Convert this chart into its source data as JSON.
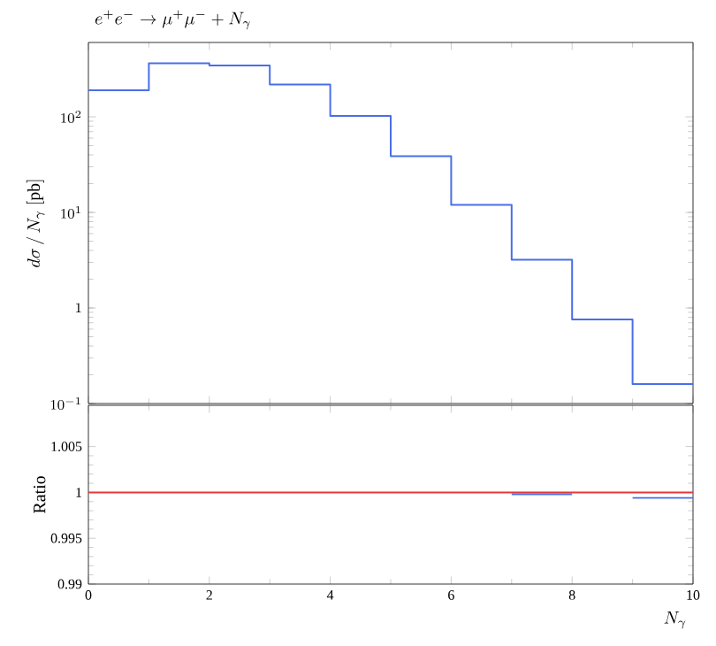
{
  "chart_data": [
    {
      "type": "histogram",
      "title": "e^+e^- \\to \\mu^+\\mu^- + N_\\gamma",
      "ylabel": "d\\sigma\\,/\\,N_\\gamma\\ [\\mathrm{pb}]",
      "bins": [
        0,
        1,
        2,
        3,
        4,
        5,
        6,
        7,
        8,
        9,
        10
      ],
      "series": [
        {
          "color": "#4a6ee8",
          "values": [
            190,
            363,
            345,
            218,
            102,
            38.7,
            12,
            3.2,
            0.76,
            0.16
          ]
        }
      ],
      "log": true,
      "xlim": [
        0,
        10
      ],
      "xticks": [
        0,
        2,
        4,
        6,
        8,
        10
      ],
      "ylim": [
        0.1,
        600
      ],
      "yticks": [
        {
          "value": 0.1,
          "label": "10^{-1}"
        },
        {
          "value": 1,
          "label": "1"
        },
        {
          "value": 10,
          "label": "10^{1}"
        },
        {
          "value": 100,
          "label": "10^{2}"
        }
      ],
      "tick_labels": "y"
    },
    {
      "type": "step",
      "xlabel": "N_\\gamma",
      "ylabel": "Ratio",
      "x": [
        0,
        1,
        2,
        3,
        4,
        5,
        6,
        7,
        8,
        9,
        10
      ],
      "series": [
        {
          "color": "#4a6ee8",
          "values": [
            null,
            null,
            null,
            null,
            null,
            null,
            null,
            0.9998,
            null,
            0.9994,
            0.9994
          ]
        },
        {
          "color": "#e03a3a",
          "values": [
            1,
            1,
            1,
            1,
            1,
            1,
            1,
            1,
            1,
            1,
            1
          ]
        }
      ],
      "xlim": [
        0,
        10
      ],
      "xticks": [
        0,
        2,
        4,
        6,
        8,
        10
      ],
      "ylim": [
        0.99,
        1.0095
      ],
      "yticks": [
        0.99,
        0.995,
        1,
        1.005
      ]
    }
  ]
}
